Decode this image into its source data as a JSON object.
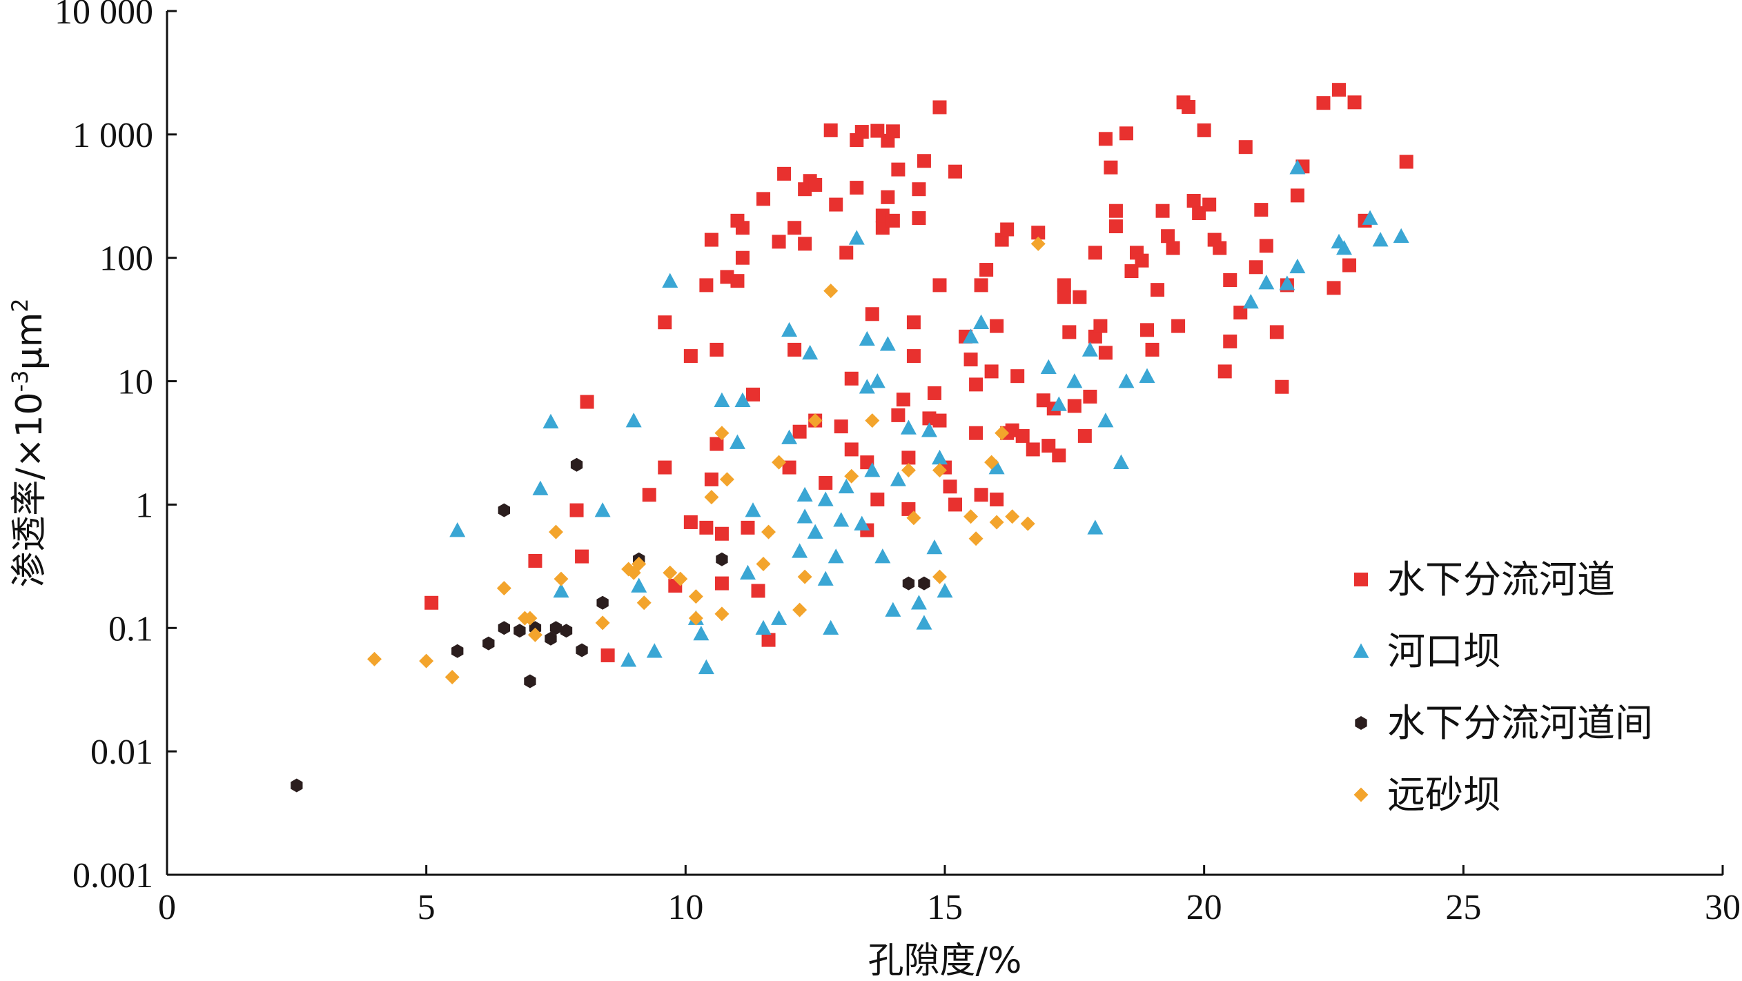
{
  "chart_data": {
    "type": "scatter",
    "title": "",
    "xlabel": "孔隙度/%",
    "ylabel_main": "渗透率/×10",
    "ylabel_sup": "-3",
    "ylabel_unit": "μm",
    "ylabel_unit_sup": "2",
    "xlim": [
      0,
      30
    ],
    "ylim": [
      0.001,
      10000
    ],
    "yscale": "log",
    "grid": false,
    "legend_position": "bottom-right",
    "x_ticks": [
      {
        "value": 0,
        "label": "0"
      },
      {
        "value": 5,
        "label": "5"
      },
      {
        "value": 10,
        "label": "10"
      },
      {
        "value": 15,
        "label": "15"
      },
      {
        "value": 20,
        "label": "20"
      },
      {
        "value": 25,
        "label": "25"
      },
      {
        "value": 30,
        "label": "30"
      }
    ],
    "y_ticks": [
      {
        "value": 0.001,
        "label": "0.001"
      },
      {
        "value": 0.01,
        "label": "0.01"
      },
      {
        "value": 0.1,
        "label": "0.1"
      },
      {
        "value": 1,
        "label": "1"
      },
      {
        "value": 10,
        "label": "10"
      },
      {
        "value": 100,
        "label": "100"
      },
      {
        "value": 1000,
        "label": "1 000"
      },
      {
        "value": 10000,
        "label": "10 000"
      }
    ],
    "series": [
      {
        "name": "水下分流河道",
        "marker": "square",
        "color": "#e8312f",
        "points": [
          [
            5.1,
            0.16
          ],
          [
            7.1,
            0.35
          ],
          [
            7.9,
            0.9
          ],
          [
            8.1,
            6.8
          ],
          [
            8.0,
            0.38
          ],
          [
            8.5,
            0.06
          ],
          [
            9.3,
            1.2
          ],
          [
            9.6,
            2.0
          ],
          [
            9.6,
            30
          ],
          [
            9.8,
            0.22
          ],
          [
            10.1,
            0.72
          ],
          [
            10.1,
            16
          ],
          [
            10.4,
            0.65
          ],
          [
            10.4,
            60
          ],
          [
            10.5,
            1.6
          ],
          [
            10.5,
            140
          ],
          [
            10.6,
            3.1
          ],
          [
            10.6,
            18
          ],
          [
            10.7,
            0.58
          ],
          [
            10.7,
            0.23
          ],
          [
            10.8,
            70
          ],
          [
            11.0,
            65
          ],
          [
            11.0,
            200
          ],
          [
            11.1,
            100
          ],
          [
            11.1,
            175
          ],
          [
            11.2,
            0.65
          ],
          [
            11.3,
            7.8
          ],
          [
            11.4,
            0.2
          ],
          [
            11.5,
            300
          ],
          [
            11.6,
            0.08
          ],
          [
            11.8,
            135
          ],
          [
            11.9,
            480
          ],
          [
            12.0,
            2.0
          ],
          [
            12.1,
            175
          ],
          [
            12.1,
            18
          ],
          [
            12.2,
            3.9
          ],
          [
            12.3,
            360
          ],
          [
            12.3,
            130
          ],
          [
            12.4,
            420
          ],
          [
            12.5,
            390
          ],
          [
            12.5,
            4.8
          ],
          [
            12.7,
            1.5
          ],
          [
            12.8,
            1080
          ],
          [
            12.9,
            270
          ],
          [
            13.0,
            4.3
          ],
          [
            13.1,
            110
          ],
          [
            13.2,
            2.8
          ],
          [
            13.2,
            10.5
          ],
          [
            13.3,
            370
          ],
          [
            13.3,
            900
          ],
          [
            13.4,
            1050
          ],
          [
            13.5,
            2.2
          ],
          [
            13.5,
            0.62
          ],
          [
            13.6,
            35
          ],
          [
            13.7,
            1.1
          ],
          [
            13.7,
            1070
          ],
          [
            13.8,
            175
          ],
          [
            13.8,
            220
          ],
          [
            13.9,
            310
          ],
          [
            13.9,
            890
          ],
          [
            14.0,
            1060
          ],
          [
            14.0,
            200
          ],
          [
            14.1,
            520
          ],
          [
            14.1,
            5.3
          ],
          [
            14.2,
            7.1
          ],
          [
            14.3,
            2.4
          ],
          [
            14.3,
            0.92
          ],
          [
            14.4,
            30
          ],
          [
            14.4,
            16
          ],
          [
            14.5,
            210
          ],
          [
            14.5,
            360
          ],
          [
            14.6,
            610
          ],
          [
            14.7,
            5.0
          ],
          [
            14.8,
            8.0
          ],
          [
            14.9,
            60
          ],
          [
            14.9,
            4.8
          ],
          [
            14.9,
            1660
          ],
          [
            15.0,
            2.0
          ],
          [
            15.1,
            1.4
          ],
          [
            15.2,
            1.0
          ],
          [
            15.2,
            500
          ],
          [
            15.4,
            23
          ],
          [
            15.5,
            15
          ],
          [
            15.6,
            3.8
          ],
          [
            15.6,
            9.4
          ],
          [
            15.7,
            60
          ],
          [
            15.7,
            1.2
          ],
          [
            15.8,
            80
          ],
          [
            15.9,
            12
          ],
          [
            16.0,
            1.1
          ],
          [
            16.0,
            28
          ],
          [
            16.1,
            140
          ],
          [
            16.2,
            170
          ],
          [
            16.2,
            3.8
          ],
          [
            16.3,
            4.0
          ],
          [
            16.4,
            11
          ],
          [
            16.5,
            3.6
          ],
          [
            16.7,
            2.8
          ],
          [
            16.8,
            160
          ],
          [
            16.9,
            7.0
          ],
          [
            17.0,
            3.0
          ],
          [
            17.1,
            6.0
          ],
          [
            17.2,
            2.5
          ],
          [
            17.3,
            60
          ],
          [
            17.3,
            48
          ],
          [
            17.4,
            25
          ],
          [
            17.5,
            6.3
          ],
          [
            17.6,
            48
          ],
          [
            17.7,
            3.6
          ],
          [
            17.8,
            7.5
          ],
          [
            17.9,
            110
          ],
          [
            17.9,
            23
          ],
          [
            18.0,
            28
          ],
          [
            18.1,
            17
          ],
          [
            18.1,
            920
          ],
          [
            18.2,
            540
          ],
          [
            18.3,
            180
          ],
          [
            18.3,
            240
          ],
          [
            18.5,
            1020
          ],
          [
            18.6,
            78
          ],
          [
            18.7,
            110
          ],
          [
            18.8,
            95
          ],
          [
            18.9,
            26
          ],
          [
            19.0,
            18
          ],
          [
            19.1,
            55
          ],
          [
            19.2,
            240
          ],
          [
            19.3,
            150
          ],
          [
            19.4,
            120
          ],
          [
            19.5,
            28
          ],
          [
            19.6,
            1820
          ],
          [
            19.7,
            1670
          ],
          [
            19.8,
            290
          ],
          [
            19.9,
            230
          ],
          [
            20.0,
            1080
          ],
          [
            20.1,
            270
          ],
          [
            20.2,
            140
          ],
          [
            20.3,
            120
          ],
          [
            20.4,
            12
          ],
          [
            20.5,
            21
          ],
          [
            20.5,
            66
          ],
          [
            20.7,
            36
          ],
          [
            20.8,
            790
          ],
          [
            21.0,
            84
          ],
          [
            21.1,
            245
          ],
          [
            21.2,
            125
          ],
          [
            21.4,
            25
          ],
          [
            21.5,
            9.0
          ],
          [
            21.6,
            60
          ],
          [
            21.8,
            320
          ],
          [
            21.9,
            550
          ],
          [
            22.3,
            1800
          ],
          [
            22.5,
            57
          ],
          [
            22.6,
            2300
          ],
          [
            22.8,
            87
          ],
          [
            22.9,
            1820
          ],
          [
            23.1,
            200
          ],
          [
            23.9,
            600
          ]
        ]
      },
      {
        "name": "河口坝",
        "marker": "triangle",
        "color": "#3aa6d4",
        "points": [
          [
            5.6,
            0.62
          ],
          [
            7.2,
            1.35
          ],
          [
            7.4,
            4.7
          ],
          [
            7.6,
            0.2
          ],
          [
            8.4,
            0.9
          ],
          [
            8.9,
            0.055
          ],
          [
            9.0,
            4.8
          ],
          [
            9.1,
            0.22
          ],
          [
            9.4,
            0.065
          ],
          [
            9.7,
            65
          ],
          [
            10.2,
            0.12
          ],
          [
            10.3,
            0.09
          ],
          [
            10.4,
            0.048
          ],
          [
            10.7,
            7.0
          ],
          [
            11.0,
            3.2
          ],
          [
            11.1,
            7.0
          ],
          [
            11.2,
            0.28
          ],
          [
            11.3,
            0.9
          ],
          [
            11.5,
            0.1
          ],
          [
            11.8,
            0.12
          ],
          [
            12.0,
            3.5
          ],
          [
            12.0,
            26
          ],
          [
            12.2,
            0.42
          ],
          [
            12.3,
            0.8
          ],
          [
            12.3,
            1.2
          ],
          [
            12.4,
            17
          ],
          [
            12.5,
            0.6
          ],
          [
            12.7,
            1.1
          ],
          [
            12.7,
            0.25
          ],
          [
            12.8,
            0.1
          ],
          [
            12.9,
            0.38
          ],
          [
            13.0,
            0.75
          ],
          [
            13.1,
            1.4
          ],
          [
            13.3,
            145
          ],
          [
            13.4,
            0.7
          ],
          [
            13.5,
            9.0
          ],
          [
            13.5,
            22
          ],
          [
            13.6,
            1.9
          ],
          [
            13.7,
            10
          ],
          [
            13.8,
            0.38
          ],
          [
            13.9,
            20
          ],
          [
            14.0,
            0.14
          ],
          [
            14.1,
            1.6
          ],
          [
            14.3,
            4.2
          ],
          [
            14.5,
            0.16
          ],
          [
            14.6,
            0.11
          ],
          [
            14.7,
            4.0
          ],
          [
            14.8,
            0.45
          ],
          [
            14.9,
            2.4
          ],
          [
            15.0,
            0.2
          ],
          [
            15.5,
            23
          ],
          [
            15.7,
            30
          ],
          [
            16.0,
            2.0
          ],
          [
            17.0,
            13
          ],
          [
            17.2,
            6.5
          ],
          [
            17.5,
            10
          ],
          [
            17.8,
            18
          ],
          [
            17.9,
            0.65
          ],
          [
            18.1,
            4.8
          ],
          [
            18.4,
            2.2
          ],
          [
            18.5,
            10
          ],
          [
            18.9,
            11
          ],
          [
            20.9,
            44
          ],
          [
            21.2,
            63
          ],
          [
            21.6,
            62
          ],
          [
            21.8,
            85
          ],
          [
            21.8,
            540
          ],
          [
            22.6,
            135
          ],
          [
            22.7,
            120
          ],
          [
            23.2,
            210
          ],
          [
            23.4,
            140
          ],
          [
            23.8,
            150
          ]
        ]
      },
      {
        "name": "水下分流河道间",
        "marker": "hexagon",
        "color": "#2b1e1e",
        "points": [
          [
            2.5,
            0.0053
          ],
          [
            5.6,
            0.065
          ],
          [
            6.2,
            0.075
          ],
          [
            6.5,
            0.1
          ],
          [
            6.5,
            0.9
          ],
          [
            6.8,
            0.095
          ],
          [
            7.0,
            0.037
          ],
          [
            7.1,
            0.1
          ],
          [
            7.4,
            0.082
          ],
          [
            7.5,
            0.1
          ],
          [
            7.7,
            0.095
          ],
          [
            7.9,
            2.1
          ],
          [
            8.0,
            0.066
          ],
          [
            8.4,
            0.16
          ],
          [
            9.1,
            0.36
          ],
          [
            10.7,
            0.36
          ],
          [
            14.3,
            0.23
          ],
          [
            14.6,
            0.23
          ]
        ]
      },
      {
        "name": "远砂坝",
        "marker": "diamond",
        "color": "#f3a42c",
        "points": [
          [
            4.0,
            0.056
          ],
          [
            5.0,
            0.054
          ],
          [
            5.5,
            0.04
          ],
          [
            6.5,
            0.21
          ],
          [
            6.9,
            0.12
          ],
          [
            7.0,
            0.12
          ],
          [
            7.1,
            0.088
          ],
          [
            7.5,
            0.6
          ],
          [
            7.6,
            0.25
          ],
          [
            8.4,
            0.11
          ],
          [
            8.9,
            0.3
          ],
          [
            9.0,
            0.28
          ],
          [
            9.1,
            0.33
          ],
          [
            9.2,
            0.16
          ],
          [
            9.7,
            0.28
          ],
          [
            9.9,
            0.25
          ],
          [
            10.2,
            0.18
          ],
          [
            10.2,
            0.12
          ],
          [
            10.5,
            1.15
          ],
          [
            10.7,
            3.8
          ],
          [
            10.7,
            0.13
          ],
          [
            10.8,
            1.6
          ],
          [
            11.5,
            0.33
          ],
          [
            11.6,
            0.6
          ],
          [
            11.8,
            2.2
          ],
          [
            12.2,
            0.14
          ],
          [
            12.3,
            0.26
          ],
          [
            12.5,
            4.8
          ],
          [
            12.8,
            54
          ],
          [
            13.2,
            1.7
          ],
          [
            13.6,
            4.8
          ],
          [
            14.3,
            1.9
          ],
          [
            14.4,
            0.78
          ],
          [
            14.9,
            0.26
          ],
          [
            14.9,
            1.9
          ],
          [
            15.5,
            0.8
          ],
          [
            15.6,
            0.53
          ],
          [
            15.9,
            2.2
          ],
          [
            16.0,
            0.72
          ],
          [
            16.1,
            3.8
          ],
          [
            16.3,
            0.8
          ],
          [
            16.6,
            0.7
          ],
          [
            16.8,
            130
          ]
        ]
      }
    ]
  }
}
